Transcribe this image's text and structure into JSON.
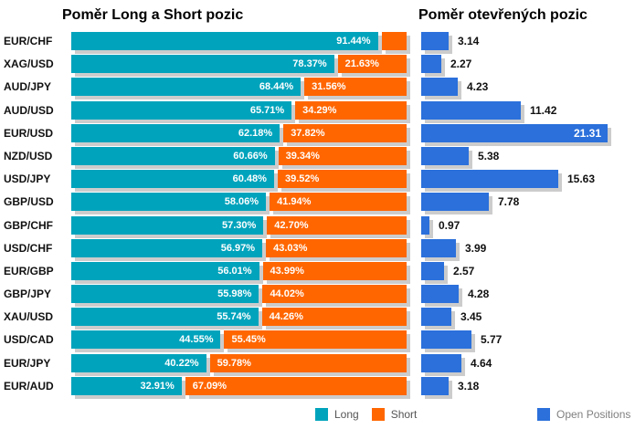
{
  "left_chart": {
    "title": "Poměr Long a Short pozic",
    "legend": [
      {
        "label": "Long"
      },
      {
        "label": "Short"
      }
    ]
  },
  "right_chart": {
    "title": "Poměr otevřených pozic",
    "legend": [
      {
        "label": "Open Positions"
      }
    ]
  },
  "colors": {
    "long": "#00a3bc",
    "short": "#ff6600",
    "open": "#2b70db",
    "shadow": "#cccccc"
  },
  "chart_data": [
    {
      "type": "bar",
      "orientation": "horizontal",
      "stacked": true,
      "title": "Poměr Long a Short pozic",
      "unit": "%",
      "xlim": [
        0,
        100
      ],
      "legend_position": "bottom",
      "categories": [
        "EUR/CHF",
        "XAG/USD",
        "AUD/JPY",
        "AUD/USD",
        "EUR/USD",
        "NZD/USD",
        "USD/JPY",
        "GBP/USD",
        "GBP/CHF",
        "USD/CHF",
        "EUR/GBP",
        "GBP/JPY",
        "XAU/USD",
        "USD/CAD",
        "EUR/JPY",
        "EUR/AUD"
      ],
      "series": [
        {
          "name": "Long",
          "values": [
            91.44,
            78.37,
            68.44,
            65.71,
            62.18,
            60.66,
            60.48,
            58.06,
            57.3,
            56.97,
            56.01,
            55.98,
            55.74,
            44.55,
            40.22,
            32.91
          ],
          "labels": [
            "91.44%",
            "78.37%",
            "68.44%",
            "65.71%",
            "62.18%",
            "60.66%",
            "60.48%",
            "58.06%",
            "57.30%",
            "56.97%",
            "56.01%",
            "55.98%",
            "55.74%",
            "44.55%",
            "40.22%",
            "32.91%"
          ]
        },
        {
          "name": "Short",
          "values": [
            8.56,
            21.63,
            31.56,
            34.29,
            37.82,
            39.34,
            39.52,
            41.94,
            42.7,
            43.03,
            43.99,
            44.02,
            44.26,
            55.45,
            59.78,
            67.09
          ],
          "labels": [
            "",
            "21.63%",
            "31.56%",
            "34.29%",
            "37.82%",
            "39.34%",
            "39.52%",
            "41.94%",
            "42.70%",
            "43.03%",
            "43.99%",
            "44.02%",
            "44.26%",
            "55.45%",
            "59.78%",
            "67.09%"
          ]
        }
      ]
    },
    {
      "type": "bar",
      "orientation": "horizontal",
      "title": "Poměr otevřených pozic",
      "xlim": [
        0,
        21.31
      ],
      "legend_position": "bottom",
      "categories": [
        "EUR/CHF",
        "XAG/USD",
        "AUD/JPY",
        "AUD/USD",
        "EUR/USD",
        "NZD/USD",
        "USD/JPY",
        "GBP/USD",
        "GBP/CHF",
        "USD/CHF",
        "EUR/GBP",
        "GBP/JPY",
        "XAU/USD",
        "USD/CAD",
        "EUR/JPY",
        "EUR/AUD"
      ],
      "series": [
        {
          "name": "Open Positions",
          "values": [
            3.14,
            2.27,
            4.23,
            11.42,
            21.31,
            5.38,
            15.63,
            7.78,
            0.97,
            3.99,
            2.57,
            4.28,
            3.45,
            5.77,
            4.64,
            3.18
          ],
          "labels": [
            "3.14",
            "2.27",
            "4.23",
            "11.42",
            "21.31",
            "5.38",
            "15.63",
            "7.78",
            "0.97",
            "3.99",
            "2.57",
            "4.28",
            "3.45",
            "5.77",
            "4.64",
            "3.18"
          ]
        }
      ]
    }
  ]
}
